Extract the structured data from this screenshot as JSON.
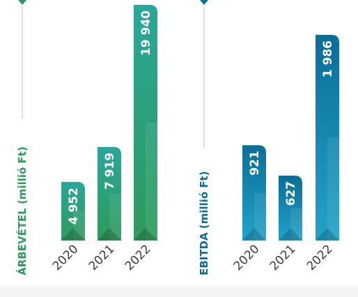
{
  "chart_data": [
    {
      "type": "bar",
      "title": "",
      "xlabel": "",
      "ylabel": "ÁRBEVÉTEL (millió Ft)",
      "categories": [
        "2020",
        "2021",
        "2022"
      ],
      "values": [
        4952,
        7919,
        19940
      ],
      "value_labels": [
        "4 952",
        "7 919",
        "19 940"
      ],
      "ylim": [
        0,
        19940
      ],
      "grid": false,
      "legend": "none",
      "colors": {
        "top": "#2aa79a",
        "bottom": "#2e9a5c",
        "label": "#2e9a5c"
      }
    },
    {
      "type": "bar",
      "title": "",
      "xlabel": "",
      "ylabel": "EBITDA (millió Ft)",
      "categories": [
        "2020",
        "2021",
        "2022"
      ],
      "values": [
        921,
        627,
        1986
      ],
      "value_labels": [
        "921",
        "627",
        "1 986"
      ],
      "ylim": [
        0,
        1986
      ],
      "grid": false,
      "legend": "none",
      "colors": {
        "top": "#0b6e97",
        "bottom": "#22a3c8",
        "label": "#0b6e97"
      }
    }
  ]
}
